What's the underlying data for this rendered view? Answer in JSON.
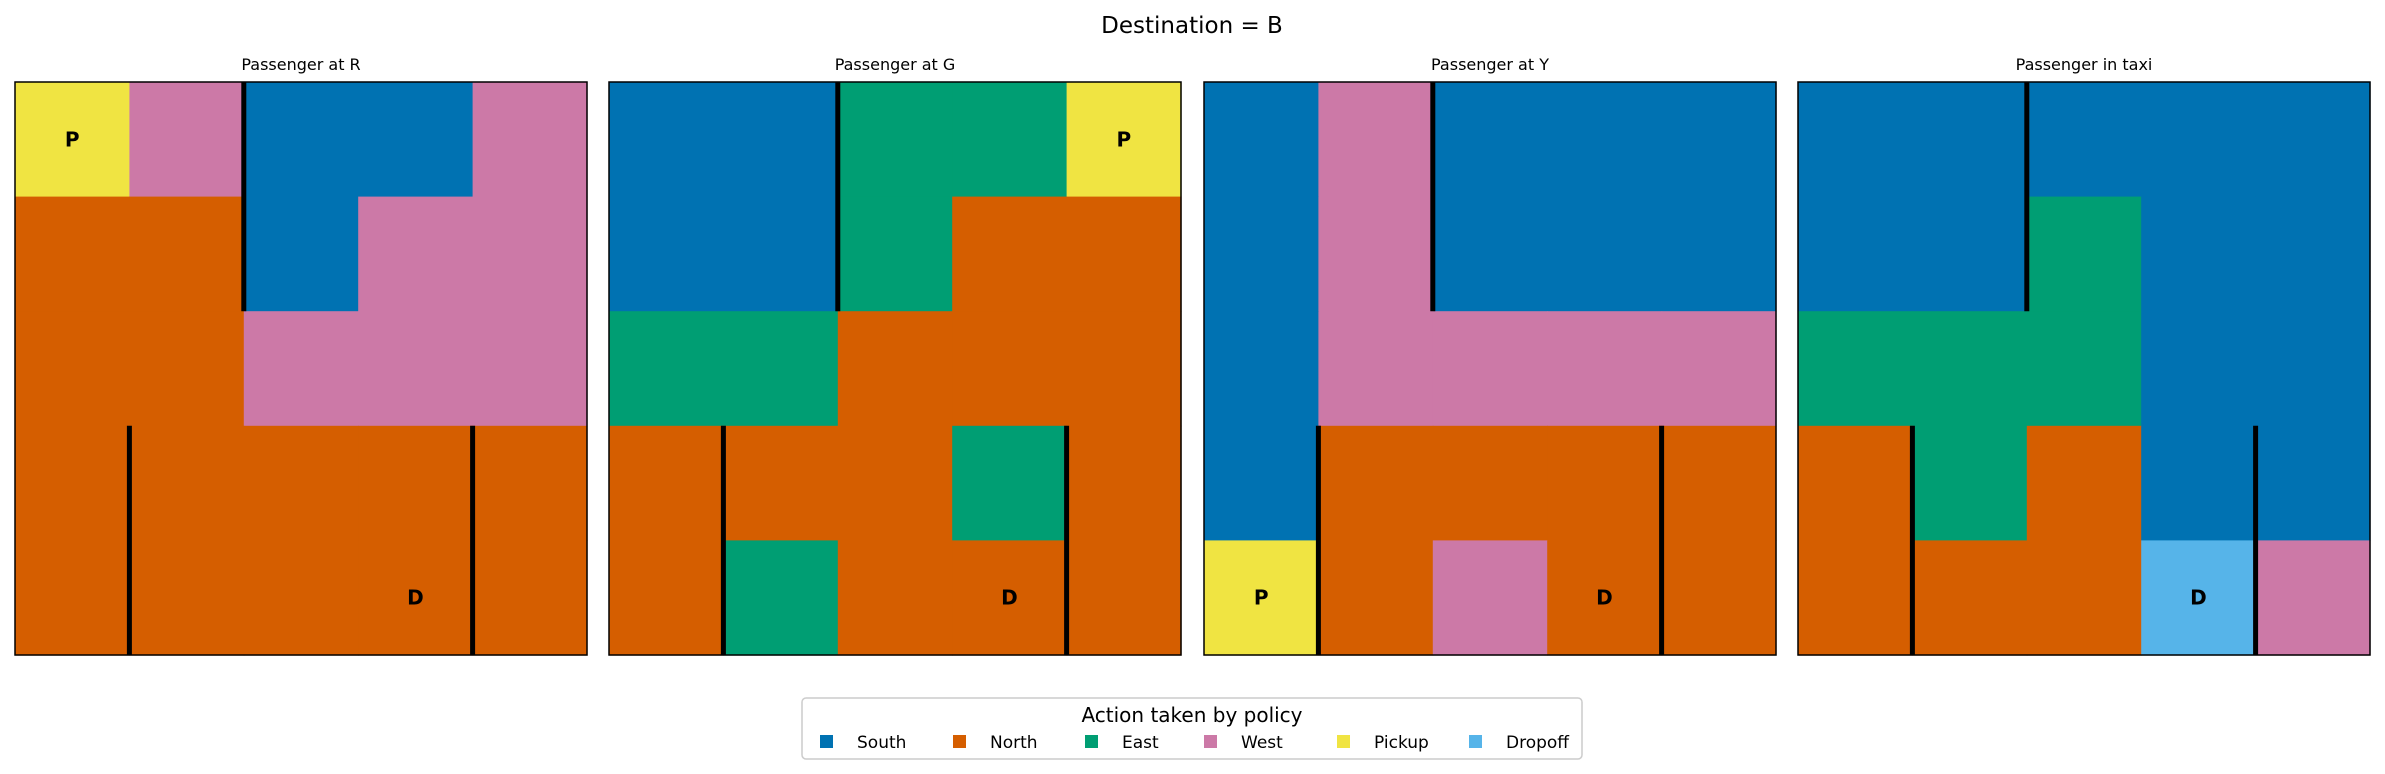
{
  "title": "Destination = B",
  "legend": {
    "title": "Action taken by policy",
    "placement": "bottom-center",
    "entries": [
      {
        "action": "South",
        "color": "#0072B2"
      },
      {
        "action": "North",
        "color": "#D55E00"
      },
      {
        "action": "East",
        "color": "#009E73"
      },
      {
        "action": "West",
        "color": "#CC79A7"
      },
      {
        "action": "Pickup",
        "color": "#F0E442"
      },
      {
        "action": "Dropoff",
        "color": "#56B4E9"
      }
    ]
  },
  "chart_data": [
    {
      "type": "heatmap",
      "title": "Passenger at R",
      "grid_rows": 5,
      "grid_cols": 5,
      "actions": [
        [
          "Pickup",
          "West",
          "South",
          "South",
          "West"
        ],
        [
          "North",
          "North",
          "South",
          "West",
          "West"
        ],
        [
          "North",
          "North",
          "West",
          "West",
          "West"
        ],
        [
          "North",
          "North",
          "North",
          "North",
          "North"
        ],
        [
          "North",
          "North",
          "North",
          "North",
          "North"
        ]
      ],
      "markers": [
        {
          "label": "P",
          "row": 0,
          "col": 0
        },
        {
          "label": "D",
          "row": 4,
          "col": 3
        }
      ],
      "walls": [
        {
          "between_cols": [
            1,
            2
          ],
          "rows": [
            0,
            1
          ]
        },
        {
          "between_cols": [
            0,
            1
          ],
          "rows": [
            3,
            4
          ]
        },
        {
          "between_cols": [
            3,
            4
          ],
          "rows": [
            3,
            4
          ]
        }
      ]
    },
    {
      "type": "heatmap",
      "title": "Passenger at G",
      "grid_rows": 5,
      "grid_cols": 5,
      "actions": [
        [
          "South",
          "South",
          "East",
          "East",
          "Pickup"
        ],
        [
          "South",
          "South",
          "East",
          "North",
          "North"
        ],
        [
          "East",
          "East",
          "North",
          "North",
          "North"
        ],
        [
          "North",
          "North",
          "North",
          "East",
          "North"
        ],
        [
          "North",
          "East",
          "North",
          "North",
          "North"
        ]
      ],
      "markers": [
        {
          "label": "P",
          "row": 0,
          "col": 4
        },
        {
          "label": "D",
          "row": 4,
          "col": 3
        }
      ],
      "walls": [
        {
          "between_cols": [
            1,
            2
          ],
          "rows": [
            0,
            1
          ]
        },
        {
          "between_cols": [
            0,
            1
          ],
          "rows": [
            3,
            4
          ]
        },
        {
          "between_cols": [
            3,
            4
          ],
          "rows": [
            3,
            4
          ]
        }
      ]
    },
    {
      "type": "heatmap",
      "title": "Passenger at Y",
      "grid_rows": 5,
      "grid_cols": 5,
      "actions": [
        [
          "South",
          "West",
          "South",
          "South",
          "South"
        ],
        [
          "South",
          "West",
          "South",
          "South",
          "South"
        ],
        [
          "South",
          "West",
          "West",
          "West",
          "West"
        ],
        [
          "South",
          "North",
          "North",
          "North",
          "North"
        ],
        [
          "Pickup",
          "North",
          "West",
          "North",
          "North"
        ]
      ],
      "markers": [
        {
          "label": "P",
          "row": 4,
          "col": 0
        },
        {
          "label": "D",
          "row": 4,
          "col": 3
        }
      ],
      "walls": [
        {
          "between_cols": [
            1,
            2
          ],
          "rows": [
            0,
            1
          ]
        },
        {
          "between_cols": [
            0,
            1
          ],
          "rows": [
            3,
            4
          ]
        },
        {
          "between_cols": [
            3,
            4
          ],
          "rows": [
            3,
            4
          ]
        }
      ]
    },
    {
      "type": "heatmap",
      "title": "Passenger in taxi",
      "grid_rows": 5,
      "grid_cols": 5,
      "actions": [
        [
          "South",
          "South",
          "South",
          "South",
          "South"
        ],
        [
          "South",
          "South",
          "East",
          "South",
          "South"
        ],
        [
          "East",
          "East",
          "East",
          "South",
          "South"
        ],
        [
          "North",
          "East",
          "North",
          "South",
          "South"
        ],
        [
          "North",
          "North",
          "North",
          "Dropoff",
          "West"
        ]
      ],
      "markers": [
        {
          "label": "D",
          "row": 4,
          "col": 3
        }
      ],
      "walls": [
        {
          "between_cols": [
            1,
            2
          ],
          "rows": [
            0,
            1
          ]
        },
        {
          "between_cols": [
            0,
            1
          ],
          "rows": [
            3,
            4
          ]
        },
        {
          "between_cols": [
            3,
            4
          ],
          "rows": [
            3,
            4
          ]
        }
      ]
    }
  ]
}
